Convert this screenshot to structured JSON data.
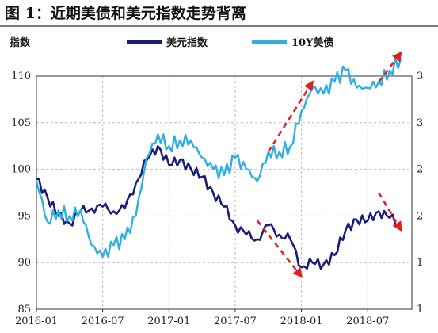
{
  "title": "图 1：近期美债和美元指数走势背离",
  "chart_data": {
    "type": "line",
    "ylabel": "指数",
    "ylim": [
      85,
      110
    ],
    "yticks": [
      85,
      90,
      95,
      100,
      105,
      110
    ],
    "y2lim": [
      1,
      3
    ],
    "y2ticks": [
      "1",
      "1",
      "2",
      "2",
      "3",
      "3"
    ],
    "xticks": [
      "2016-01",
      "2016-07",
      "2017-01",
      "2017-07",
      "2018-01",
      "2018-07"
    ],
    "grid": true,
    "legend_position": "top",
    "series": [
      {
        "name": "美元指数",
        "color": "#1c1c7e",
        "axis": "left",
        "x": [
          "2016-01",
          "2016-02",
          "2016-03",
          "2016-04",
          "2016-05",
          "2016-06",
          "2016-07",
          "2016-08",
          "2016-09",
          "2016-10",
          "2016-11",
          "2016-12",
          "2017-01",
          "2017-02",
          "2017-03",
          "2017-04",
          "2017-05",
          "2017-06",
          "2017-07",
          "2017-08",
          "2017-09",
          "2017-10",
          "2017-11",
          "2017-12",
          "2018-01",
          "2018-02",
          "2018-03",
          "2018-04",
          "2018-05",
          "2018-06",
          "2018-07",
          "2018-08",
          "2018-09",
          "2018-10"
        ],
        "values": [
          99,
          97,
          95,
          94.2,
          95.5,
          95.8,
          96,
          95.5,
          95.8,
          98.5,
          101,
          102.5,
          100.5,
          101,
          100,
          99.2,
          97.5,
          96,
          94,
          93,
          92.5,
          94,
          93,
          92.5,
          89.5,
          90,
          89.8,
          90.8,
          93.5,
          94.6,
          94.5,
          95.5,
          94.8,
          94
        ]
      },
      {
        "name": "10Y美债",
        "color": "#2eb0e3",
        "axis": "right",
        "x": [
          "2016-01",
          "2016-02",
          "2016-03",
          "2016-04",
          "2016-05",
          "2016-06",
          "2016-07",
          "2016-08",
          "2016-09",
          "2016-10",
          "2016-11",
          "2016-12",
          "2017-01",
          "2017-02",
          "2017-03",
          "2017-04",
          "2017-05",
          "2017-06",
          "2017-07",
          "2017-08",
          "2017-09",
          "2017-10",
          "2017-11",
          "2017-12",
          "2018-01",
          "2018-02",
          "2018-03",
          "2018-04",
          "2018-05",
          "2018-06",
          "2018-07",
          "2018-08",
          "2018-09",
          "2018-10"
        ],
        "values": [
          2.1,
          1.75,
          1.85,
          1.8,
          1.85,
          1.55,
          1.45,
          1.55,
          1.6,
          1.8,
          2.3,
          2.5,
          2.4,
          2.45,
          2.45,
          2.3,
          2.2,
          2.15,
          2.3,
          2.2,
          2.1,
          2.35,
          2.35,
          2.4,
          2.7,
          2.9,
          2.85,
          2.95,
          3.05,
          2.9,
          2.9,
          2.95,
          3.05,
          3.15
        ]
      }
    ],
    "annotations": [
      {
        "type": "arrow",
        "style": "dashed-red",
        "from": [
          "2017-10",
          2.35
        ],
        "to": [
          "2018-02",
          2.95
        ],
        "axis": "right"
      },
      {
        "type": "arrow",
        "style": "dashed-red",
        "from": [
          "2018-08",
          2.95
        ],
        "to": [
          "2018-10",
          3.2
        ],
        "axis": "right"
      },
      {
        "type": "arrow",
        "style": "dashed-red",
        "from": [
          "2017-09",
          94.5
        ],
        "to": [
          "2018-01",
          88.5
        ],
        "axis": "left"
      },
      {
        "type": "arrow",
        "style": "dashed-red",
        "from": [
          "2018-08",
          97.5
        ],
        "to": [
          "2018-10",
          93.5
        ],
        "axis": "left"
      }
    ]
  }
}
